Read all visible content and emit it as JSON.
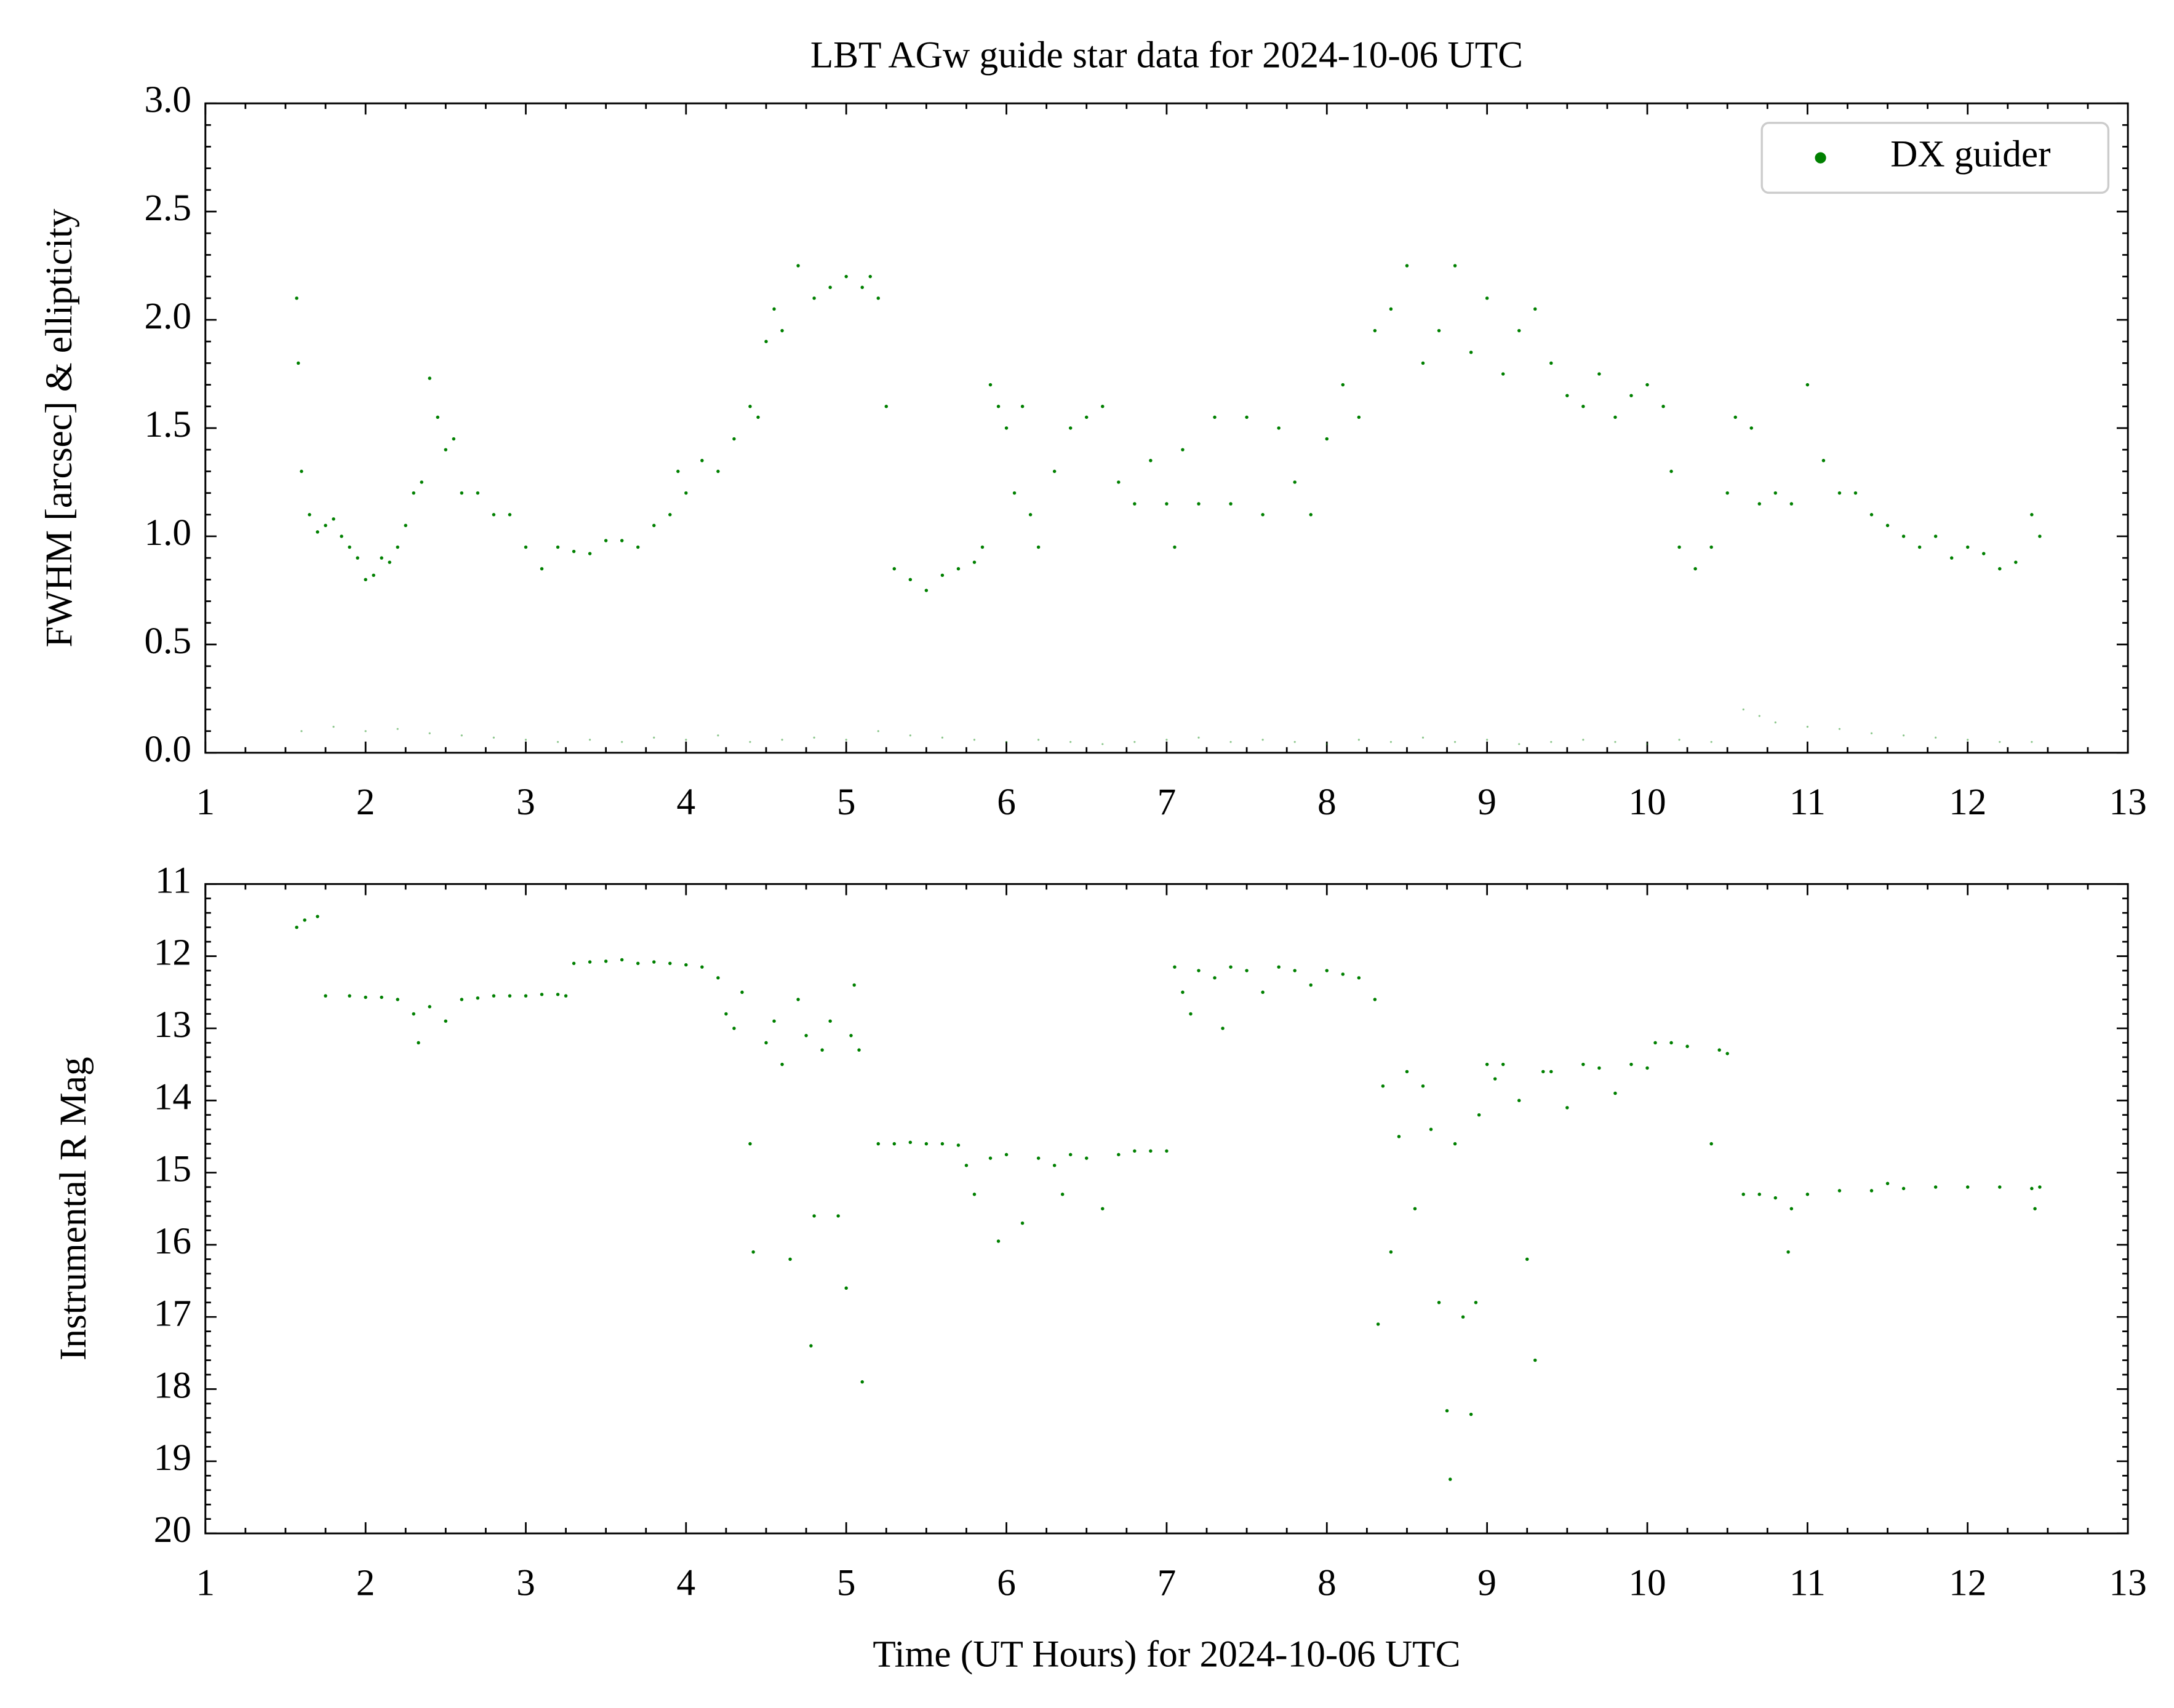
{
  "chart_data": [
    {
      "type": "scatter",
      "title": "LBT AGw guide star data for 2024-10-06 UTC",
      "ylabel": "FWHM [arcsec] & ellipticity",
      "xlim": [
        1,
        13
      ],
      "xticks": [
        1,
        2,
        3,
        4,
        5,
        6,
        7,
        8,
        9,
        10,
        11,
        12,
        13
      ],
      "ylim": [
        0,
        3
      ],
      "yticks": [
        {
          "value": 0,
          "label": "0.0"
        },
        0.5,
        {
          "value": 1,
          "label": "1.0"
        },
        1.5,
        {
          "value": 2,
          "label": "2.0"
        },
        2.5,
        {
          "value": 3,
          "label": "3.0"
        }
      ],
      "legend": "upper right",
      "series": [
        {
          "name": "DX guider",
          "color": "#008000",
          "alpha": 1,
          "x": [
            1.57,
            1.58,
            1.6,
            1.65,
            1.7,
            1.75,
            1.8,
            1.85,
            1.9,
            1.95,
            2.0,
            2.05,
            2.1,
            2.15,
            2.2,
            2.25,
            2.3,
            2.35,
            2.4,
            2.45,
            2.5,
            2.55,
            2.6,
            2.7,
            2.8,
            2.9,
            3.0,
            3.1,
            3.2,
            3.3,
            3.4,
            3.5,
            3.6,
            3.7,
            3.8,
            3.9,
            3.95,
            4.0,
            4.1,
            4.2,
            4.3,
            4.4,
            4.45,
            4.5,
            4.55,
            4.6,
            4.7,
            4.8,
            4.9,
            5.0,
            5.1,
            5.15,
            5.2,
            5.25,
            5.3,
            5.4,
            5.5,
            5.6,
            5.7,
            5.8,
            5.85,
            5.9,
            5.95,
            6.0,
            6.05,
            6.1,
            6.15,
            6.2,
            6.3,
            6.4,
            6.5,
            6.6,
            6.7,
            6.8,
            6.9,
            7.0,
            7.05,
            7.1,
            7.2,
            7.3,
            7.4,
            7.5,
            7.6,
            7.7,
            7.8,
            7.9,
            8.0,
            8.1,
            8.2,
            8.3,
            8.4,
            8.5,
            8.6,
            8.7,
            8.8,
            8.9,
            9.0,
            9.1,
            9.2,
            9.3,
            9.4,
            9.5,
            9.6,
            9.7,
            9.8,
            9.9,
            10.0,
            10.1,
            10.15,
            10.2,
            10.3,
            10.4,
            10.5,
            10.55,
            10.65,
            10.7,
            10.8,
            10.9,
            11.0,
            11.1,
            11.2,
            11.3,
            11.4,
            11.5,
            11.6,
            11.7,
            11.8,
            11.9,
            12.0,
            12.1,
            12.2,
            12.3,
            12.4,
            12.45
          ],
          "values": [
            2.1,
            1.8,
            1.3,
            1.1,
            1.02,
            1.05,
            1.08,
            1.0,
            0.95,
            0.9,
            0.8,
            0.82,
            0.9,
            0.88,
            0.95,
            1.05,
            1.2,
            1.25,
            1.73,
            1.55,
            1.4,
            1.45,
            1.2,
            1.2,
            1.1,
            1.1,
            0.95,
            0.85,
            0.95,
            0.93,
            0.92,
            0.98,
            0.98,
            0.95,
            1.05,
            1.1,
            1.3,
            1.2,
            1.35,
            1.3,
            1.45,
            1.6,
            1.55,
            1.9,
            2.05,
            1.95,
            2.25,
            2.1,
            2.15,
            2.2,
            2.15,
            2.2,
            2.1,
            1.6,
            0.85,
            0.8,
            0.75,
            0.82,
            0.85,
            0.88,
            0.95,
            1.7,
            1.6,
            1.5,
            1.2,
            1.6,
            1.1,
            0.95,
            1.3,
            1.5,
            1.55,
            1.6,
            1.25,
            1.15,
            1.35,
            1.15,
            0.95,
            1.4,
            1.15,
            1.55,
            1.15,
            1.55,
            1.1,
            1.5,
            1.25,
            1.1,
            1.45,
            1.7,
            1.55,
            1.95,
            2.05,
            2.25,
            1.8,
            1.95,
            2.25,
            1.85,
            2.1,
            1.75,
            1.95,
            2.05,
            1.8,
            1.65,
            1.6,
            1.75,
            1.55,
            1.65,
            1.7,
            1.6,
            1.3,
            0.95,
            0.85,
            0.95,
            1.2,
            1.55,
            1.5,
            1.15,
            1.2,
            1.15,
            1.7,
            1.35,
            1.2,
            1.2,
            1.1,
            1.05,
            1.0,
            0.95,
            1.0,
            0.9,
            0.95,
            0.92,
            0.85,
            0.88,
            1.1,
            1.0
          ]
        },
        {
          "color": "#008000",
          "alpha": 0.45,
          "x": [
            1.6,
            1.8,
            2.0,
            2.2,
            2.4,
            2.6,
            2.8,
            3.0,
            3.2,
            3.4,
            3.6,
            3.8,
            4.0,
            4.2,
            4.4,
            4.6,
            4.8,
            5.0,
            5.2,
            5.4,
            5.6,
            5.8,
            6.0,
            6.2,
            6.4,
            6.6,
            6.8,
            7.0,
            7.2,
            7.4,
            7.6,
            7.8,
            8.0,
            8.2,
            8.4,
            8.6,
            8.8,
            9.0,
            9.2,
            9.4,
            9.6,
            9.8,
            10.0,
            10.2,
            10.4,
            10.6,
            10.7,
            10.8,
            11.0,
            11.2,
            11.4,
            11.6,
            11.8,
            12.0,
            12.2,
            12.4
          ],
          "values": [
            0.1,
            0.12,
            0.1,
            0.11,
            0.09,
            0.08,
            0.07,
            0.06,
            0.05,
            0.06,
            0.05,
            0.07,
            0.06,
            0.08,
            0.05,
            0.06,
            0.07,
            0.06,
            0.1,
            0.08,
            0.07,
            0.06,
            0.05,
            0.06,
            0.05,
            0.04,
            0.05,
            0.06,
            0.07,
            0.05,
            0.06,
            0.05,
            0.04,
            0.06,
            0.05,
            0.07,
            0.05,
            0.06,
            0.04,
            0.05,
            0.06,
            0.05,
            0.04,
            0.06,
            0.05,
            0.2,
            0.17,
            0.14,
            0.12,
            0.11,
            0.09,
            0.08,
            0.07,
            0.06,
            0.05,
            0.05
          ]
        }
      ]
    },
    {
      "type": "scatter",
      "ylabel": "Instrumental R Mag",
      "xlabel": "Time (UT Hours) for 2024-10-06 UTC",
      "xlim": [
        1,
        13
      ],
      "xticks": [
        1,
        2,
        3,
        4,
        5,
        6,
        7,
        8,
        9,
        10,
        11,
        12,
        13
      ],
      "ylim": [
        20,
        11
      ],
      "yticks": [
        11,
        12,
        13,
        14,
        15,
        16,
        17,
        18,
        19,
        20
      ],
      "series": [
        {
          "color": "#008000",
          "alpha": 1,
          "x": [
            1.57,
            1.62,
            1.7,
            1.75,
            1.9,
            2.0,
            2.1,
            2.2,
            2.3,
            2.33,
            2.4,
            2.5,
            2.6,
            2.7,
            2.8,
            2.9,
            3.0,
            3.1,
            3.2,
            3.25,
            3.3,
            3.4,
            3.5,
            3.6,
            3.7,
            3.8,
            3.9,
            4.0,
            4.1,
            4.2,
            4.25,
            4.3,
            4.35,
            4.4,
            4.42,
            4.5,
            4.55,
            4.6,
            4.65,
            4.7,
            4.75,
            4.78,
            4.8,
            4.85,
            4.9,
            4.95,
            5.0,
            5.03,
            5.05,
            5.08,
            5.1,
            5.2,
            5.3,
            5.4,
            5.5,
            5.6,
            5.7,
            5.75,
            5.8,
            5.9,
            5.95,
            6.0,
            6.1,
            6.2,
            6.3,
            6.35,
            6.4,
            6.5,
            6.6,
            6.7,
            6.8,
            6.9,
            7.0,
            7.05,
            7.1,
            7.15,
            7.2,
            7.3,
            7.35,
            7.4,
            7.5,
            7.6,
            7.7,
            7.8,
            7.9,
            8.0,
            8.1,
            8.2,
            8.3,
            8.32,
            8.35,
            8.4,
            8.45,
            8.5,
            8.55,
            8.6,
            8.65,
            8.7,
            8.75,
            8.77,
            8.8,
            8.85,
            8.9,
            8.93,
            8.95,
            9.0,
            9.05,
            9.1,
            9.2,
            9.25,
            9.3,
            9.35,
            9.4,
            9.5,
            9.6,
            9.7,
            9.8,
            9.9,
            10.0,
            10.05,
            10.15,
            10.25,
            10.4,
            10.45,
            10.5,
            10.6,
            10.7,
            10.8,
            10.88,
            10.9,
            11.0,
            11.2,
            11.4,
            11.5,
            11.6,
            11.8,
            12.0,
            12.2,
            12.4,
            12.42,
            12.45
          ],
          "values": [
            11.6,
            11.5,
            11.45,
            12.55,
            12.55,
            12.57,
            12.57,
            12.6,
            12.8,
            13.2,
            12.7,
            12.9,
            12.6,
            12.58,
            12.55,
            12.55,
            12.55,
            12.53,
            12.53,
            12.55,
            12.1,
            12.08,
            12.07,
            12.05,
            12.1,
            12.08,
            12.1,
            12.12,
            12.15,
            12.3,
            12.8,
            13.0,
            12.5,
            14.6,
            16.1,
            13.2,
            12.9,
            13.5,
            16.2,
            12.6,
            13.1,
            17.4,
            15.6,
            13.3,
            12.9,
            15.6,
            16.6,
            13.1,
            12.4,
            13.3,
            17.9,
            14.6,
            14.6,
            14.58,
            14.6,
            14.6,
            14.62,
            14.9,
            15.3,
            14.8,
            15.95,
            14.75,
            15.7,
            14.8,
            14.9,
            15.3,
            14.75,
            14.8,
            15.5,
            14.75,
            14.7,
            14.7,
            14.7,
            12.15,
            12.5,
            12.8,
            12.2,
            12.3,
            13.0,
            12.15,
            12.2,
            12.5,
            12.15,
            12.2,
            12.4,
            12.2,
            12.25,
            12.3,
            12.6,
            17.1,
            13.8,
            16.1,
            14.5,
            13.6,
            15.5,
            13.8,
            14.4,
            16.8,
            18.3,
            19.25,
            14.6,
            17.0,
            18.35,
            16.8,
            14.2,
            13.5,
            13.7,
            13.5,
            14.0,
            16.2,
            17.6,
            13.6,
            13.6,
            14.1,
            13.5,
            13.55,
            13.9,
            13.5,
            13.55,
            13.2,
            13.2,
            13.25,
            14.6,
            13.3,
            13.35,
            15.3,
            15.3,
            15.35,
            16.1,
            15.5,
            15.3,
            15.25,
            15.25,
            15.15,
            15.22,
            15.2,
            15.2,
            15.2,
            15.22,
            15.5,
            15.2
          ]
        }
      ]
    }
  ]
}
